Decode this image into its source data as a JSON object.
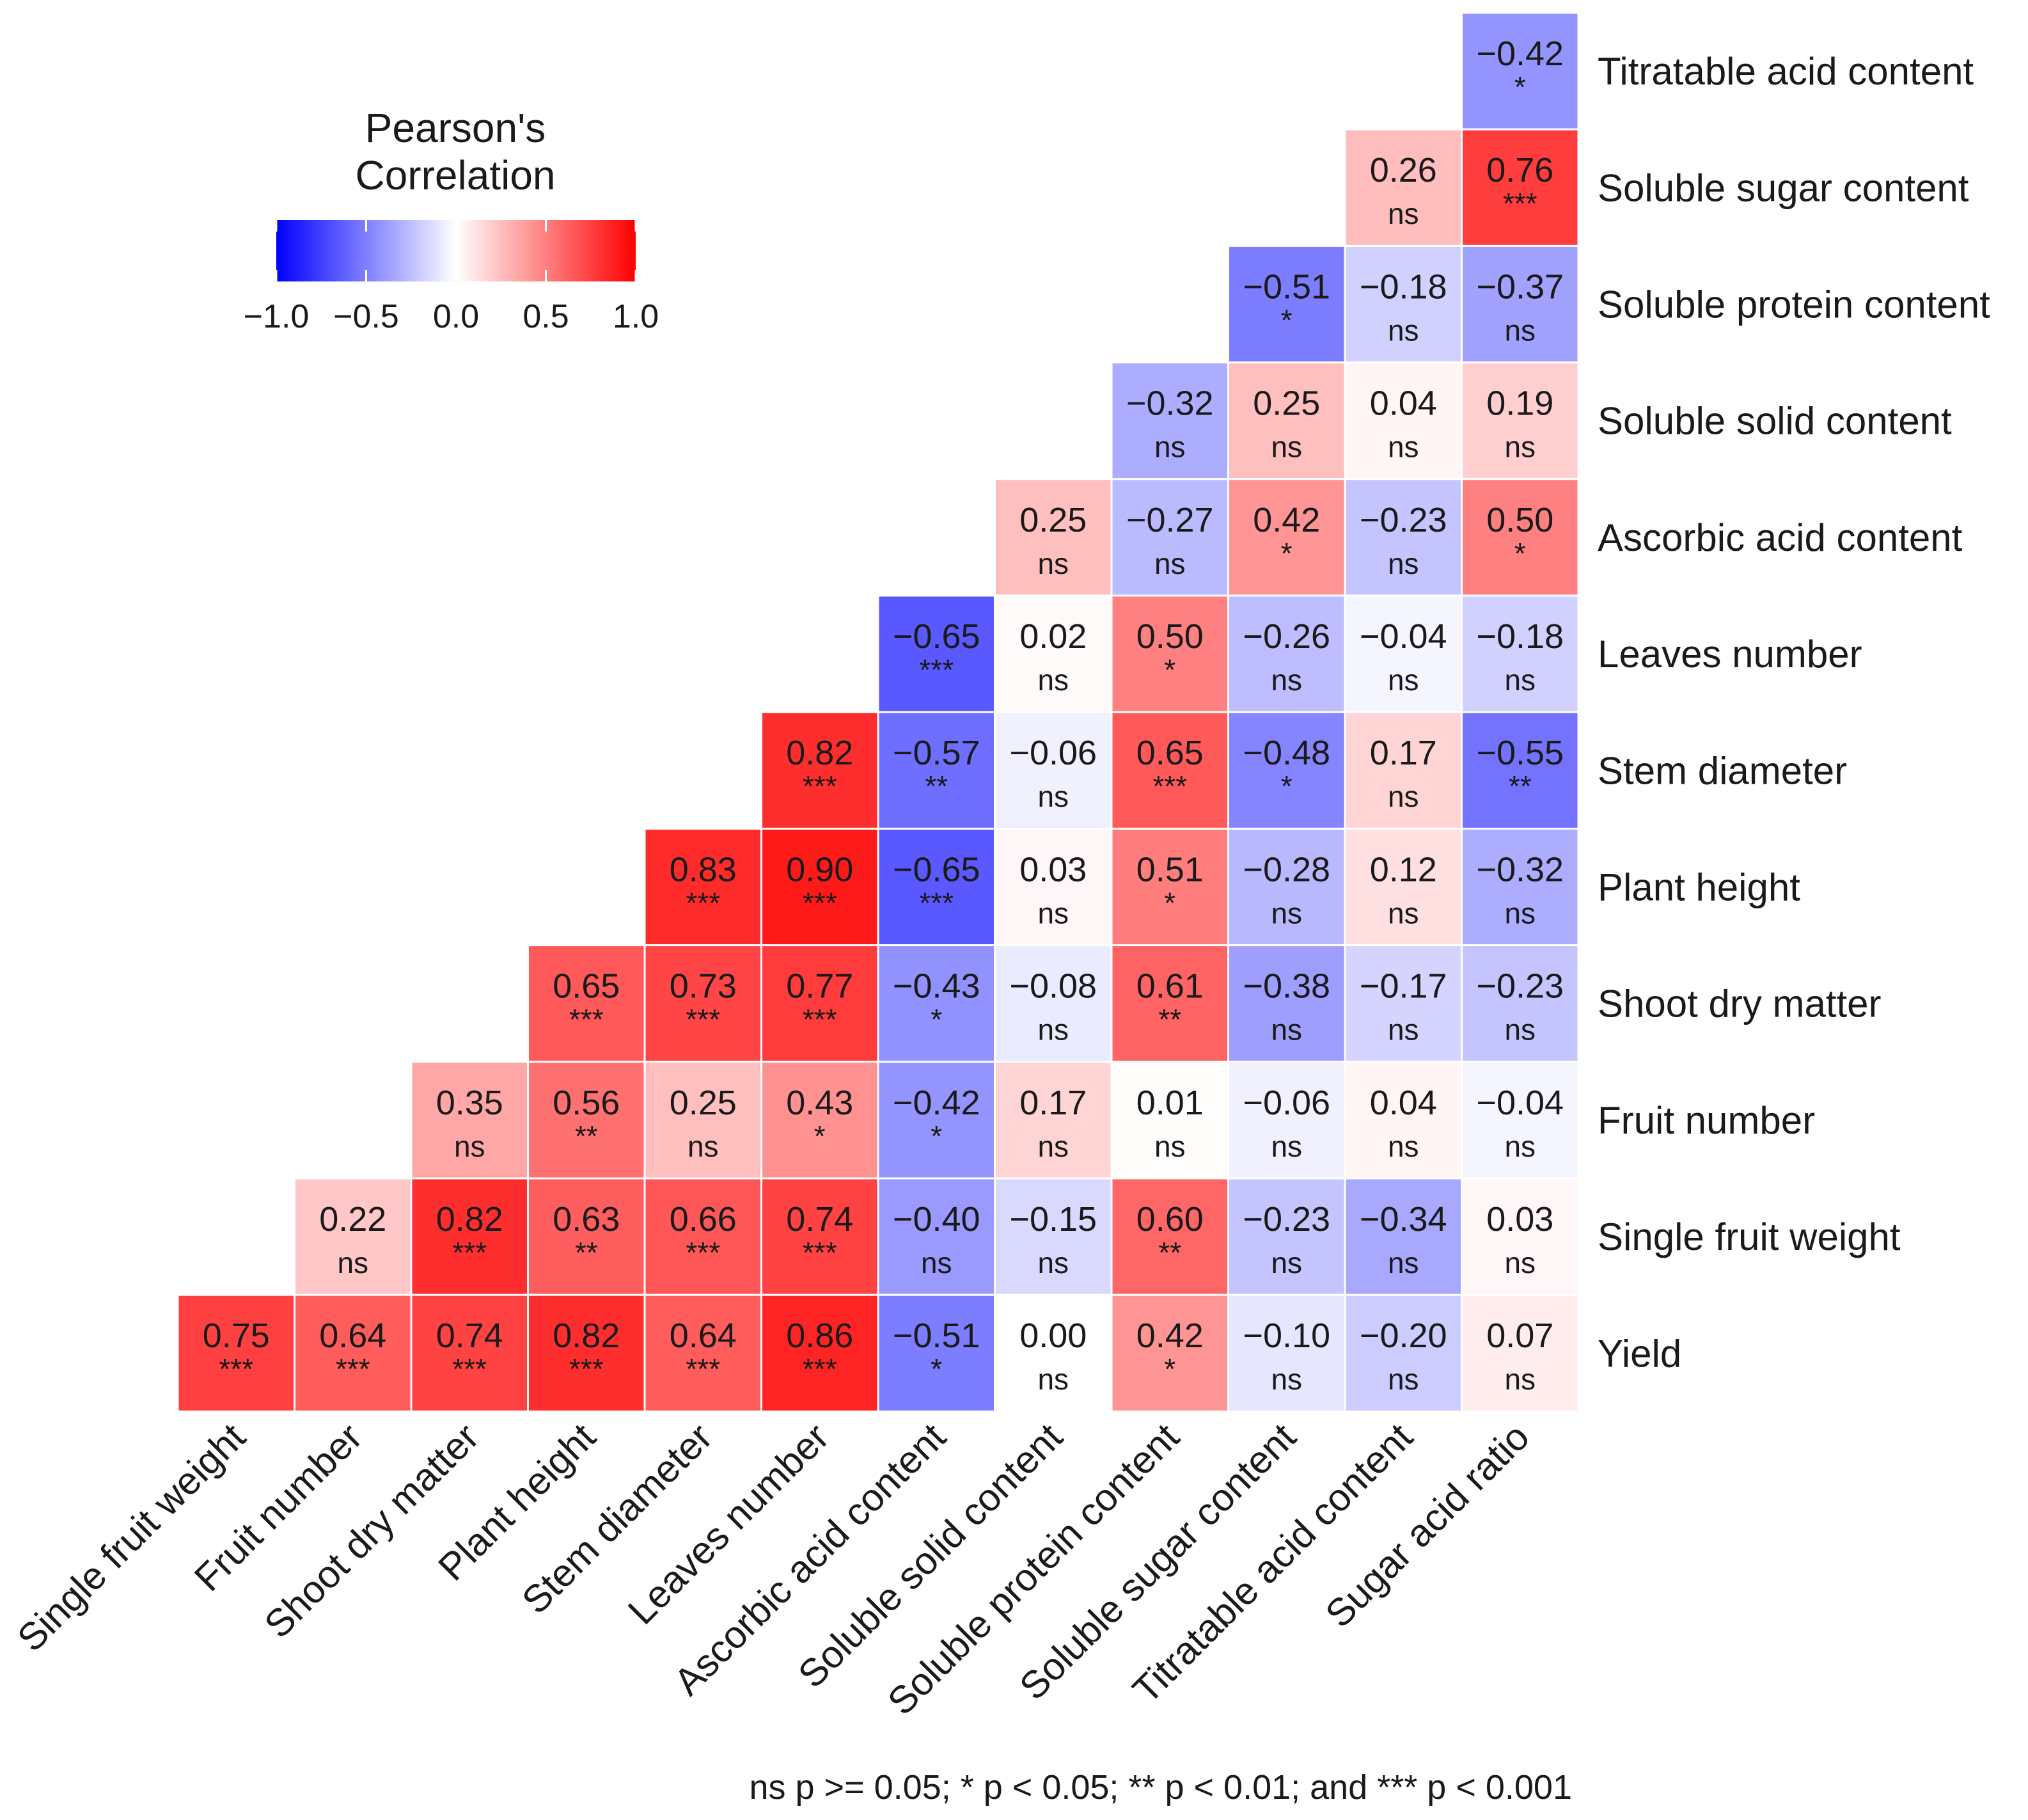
{
  "chart_data": {
    "type": "heatmap",
    "title": "",
    "legend": {
      "title_line1": "Pearson's",
      "title_line2": "Correlation",
      "ticks": [
        "−1.0",
        "−0.5",
        "0.0",
        "0.5",
        "1.0"
      ],
      "range": [
        -1,
        1
      ],
      "color_low": "#0000ff",
      "color_mid": "#ffffff",
      "color_high": "#ff0000",
      "placement": "top-left"
    },
    "columns": [
      "Single fruit weight",
      "Fruit number",
      "Shoot dry matter",
      "Plant height",
      "Stem diameter",
      "Leaves number",
      "Ascorbic acid content",
      "Soluble solid content",
      "Soluble protein content",
      "Soluble sugar content",
      "Titratable acid content",
      "Sugar acid ratio"
    ],
    "rows": [
      {
        "label": "Titratable acid content",
        "start": 11,
        "cells": [
          {
            "v": "−0.42",
            "s": "*"
          }
        ]
      },
      {
        "label": "Soluble sugar content",
        "start": 10,
        "cells": [
          {
            "v": "0.26",
            "s": "ns"
          },
          {
            "v": "0.76",
            "s": "***"
          }
        ]
      },
      {
        "label": "Soluble protein content",
        "start": 9,
        "cells": [
          {
            "v": "−0.51",
            "s": "*"
          },
          {
            "v": "−0.18",
            "s": "ns"
          },
          {
            "v": "−0.37",
            "s": "ns"
          }
        ]
      },
      {
        "label": "Soluble solid content",
        "start": 8,
        "cells": [
          {
            "v": "−0.32",
            "s": "ns"
          },
          {
            "v": "0.25",
            "s": "ns"
          },
          {
            "v": "0.04",
            "s": "ns"
          },
          {
            "v": "0.19",
            "s": "ns"
          }
        ]
      },
      {
        "label": "Ascorbic acid content",
        "start": 7,
        "cells": [
          {
            "v": "0.25",
            "s": "ns"
          },
          {
            "v": "−0.27",
            "s": "ns"
          },
          {
            "v": "0.42",
            "s": "*"
          },
          {
            "v": "−0.23",
            "s": "ns"
          },
          {
            "v": "0.50",
            "s": "*"
          }
        ]
      },
      {
        "label": "Leaves number",
        "start": 6,
        "cells": [
          {
            "v": "−0.65",
            "s": "***"
          },
          {
            "v": "0.02",
            "s": "ns"
          },
          {
            "v": "0.50",
            "s": "*"
          },
          {
            "v": "−0.26",
            "s": "ns"
          },
          {
            "v": "−0.04",
            "s": "ns"
          },
          {
            "v": "−0.18",
            "s": "ns"
          }
        ]
      },
      {
        "label": "Stem diameter",
        "start": 5,
        "cells": [
          {
            "v": "0.82",
            "s": "***"
          },
          {
            "v": "−0.57",
            "s": "**"
          },
          {
            "v": "−0.06",
            "s": "ns"
          },
          {
            "v": "0.65",
            "s": "***"
          },
          {
            "v": "−0.48",
            "s": "*"
          },
          {
            "v": "0.17",
            "s": "ns"
          },
          {
            "v": "−0.55",
            "s": "**"
          }
        ]
      },
      {
        "label": "Plant height",
        "start": 4,
        "cells": [
          {
            "v": "0.83",
            "s": "***"
          },
          {
            "v": "0.90",
            "s": "***"
          },
          {
            "v": "−0.65",
            "s": "***"
          },
          {
            "v": "0.03",
            "s": "ns"
          },
          {
            "v": "0.51",
            "s": "*"
          },
          {
            "v": "−0.28",
            "s": "ns"
          },
          {
            "v": "0.12",
            "s": "ns"
          },
          {
            "v": "−0.32",
            "s": "ns"
          }
        ]
      },
      {
        "label": "Shoot dry matter",
        "start": 3,
        "cells": [
          {
            "v": "0.65",
            "s": "***"
          },
          {
            "v": "0.73",
            "s": "***"
          },
          {
            "v": "0.77",
            "s": "***"
          },
          {
            "v": "−0.43",
            "s": "*"
          },
          {
            "v": "−0.08",
            "s": "ns"
          },
          {
            "v": "0.61",
            "s": "**"
          },
          {
            "v": "−0.38",
            "s": "ns"
          },
          {
            "v": "−0.17",
            "s": "ns"
          },
          {
            "v": "−0.23",
            "s": "ns"
          }
        ]
      },
      {
        "label": "Fruit number",
        "start": 2,
        "cells": [
          {
            "v": "0.35",
            "s": "ns"
          },
          {
            "v": "0.56",
            "s": "**"
          },
          {
            "v": "0.25",
            "s": "ns"
          },
          {
            "v": "0.43",
            "s": "*"
          },
          {
            "v": "−0.42",
            "s": "*"
          },
          {
            "v": "0.17",
            "s": "ns"
          },
          {
            "v": "0.01",
            "s": "ns"
          },
          {
            "v": "−0.06",
            "s": "ns"
          },
          {
            "v": "0.04",
            "s": "ns"
          },
          {
            "v": "−0.04",
            "s": "ns"
          }
        ]
      },
      {
        "label": "Single fruit weight",
        "start": 1,
        "cells": [
          {
            "v": "0.22",
            "s": "ns"
          },
          {
            "v": "0.82",
            "s": "***"
          },
          {
            "v": "0.63",
            "s": "**"
          },
          {
            "v": "0.66",
            "s": "***"
          },
          {
            "v": "0.74",
            "s": "***"
          },
          {
            "v": "−0.40",
            "s": "ns"
          },
          {
            "v": "−0.15",
            "s": "ns"
          },
          {
            "v": "0.60",
            "s": "**"
          },
          {
            "v": "−0.23",
            "s": "ns"
          },
          {
            "v": "−0.34",
            "s": "ns"
          },
          {
            "v": "0.03",
            "s": "ns"
          }
        ]
      },
      {
        "label": "Yield",
        "start": 0,
        "cells": [
          {
            "v": "0.75",
            "s": "***"
          },
          {
            "v": "0.64",
            "s": "***"
          },
          {
            "v": "0.74",
            "s": "***"
          },
          {
            "v": "0.82",
            "s": "***"
          },
          {
            "v": "0.64",
            "s": "***"
          },
          {
            "v": "0.86",
            "s": "***"
          },
          {
            "v": "−0.51",
            "s": "*"
          },
          {
            "v": "0.00",
            "s": "ns"
          },
          {
            "v": "0.42",
            "s": "*"
          },
          {
            "v": "−0.10",
            "s": "ns"
          },
          {
            "v": "−0.20",
            "s": "ns"
          },
          {
            "v": "0.07",
            "s": "ns"
          }
        ]
      }
    ],
    "footnote": "ns p >= 0.05; * p < 0.05; ** p < 0.01; and *** p < 0.001"
  }
}
